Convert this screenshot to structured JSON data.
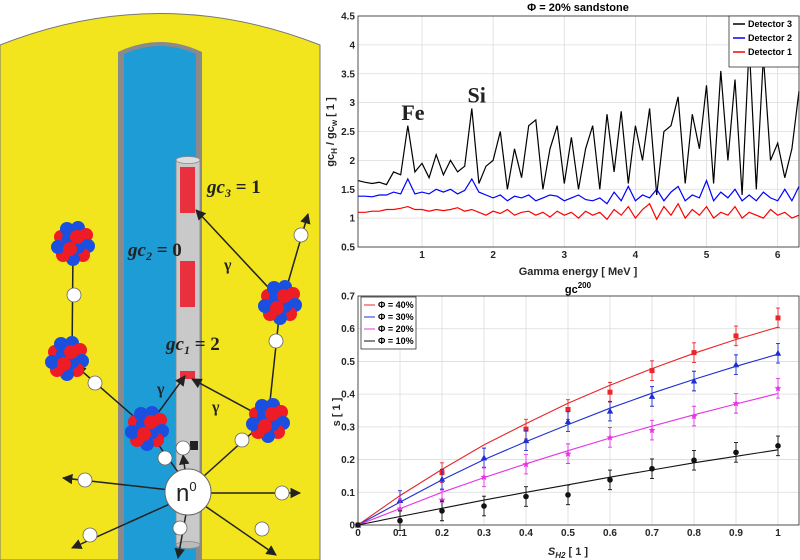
{
  "diagram": {
    "colors": {
      "formation": "#f2e51e",
      "borehole_fluid": "#1e9cd6",
      "casing": "#8a8a8a",
      "tool": "#c9c9c9",
      "detector": "#e8303f",
      "proton": "#ee1c24",
      "neutron_nucleon": "#1a4fe0"
    },
    "detectors": [
      {
        "base": "gc",
        "sub": "3",
        "value": " = 1"
      },
      {
        "base": "gc",
        "sub": "2",
        "value": " = 0"
      },
      {
        "base": "gc",
        "sub": "1",
        "value": " = 2"
      }
    ],
    "gamma_symbol": "γ",
    "neutron_source": {
      "base": "n",
      "sup": "0"
    }
  },
  "chart_data": [
    {
      "type": "line",
      "title": "Φ = 20% sandstone",
      "xlabel": "Gamma energy [ MeV ]",
      "ylabel": {
        "base1": "gc",
        "sub1": "H",
        "mid": " / gc",
        "sub2": "w",
        "tail": "  [ 1 ]"
      },
      "xlim": [
        0.1,
        6.3
      ],
      "ylim": [
        0.5,
        4.5
      ],
      "xticks": [
        1,
        2,
        3,
        4,
        5,
        6
      ],
      "yticks": [
        0.5,
        1,
        1.5,
        2,
        2.5,
        3,
        3.5,
        4,
        4.5
      ],
      "grid": true,
      "legend_position": "top-right",
      "annotations": [
        {
          "text": "Fe",
          "x": 0.85,
          "y": 2.7
        },
        {
          "text": "Si",
          "x": 1.78,
          "y": 3.0
        }
      ],
      "x_start": 0.1,
      "x_step": 0.1,
      "series": [
        {
          "name": "Detector 3",
          "color": "#000000",
          "values": [
            1.65,
            1.62,
            1.6,
            1.62,
            1.58,
            1.8,
            1.75,
            2.6,
            1.8,
            1.95,
            1.7,
            2.1,
            1.75,
            2.0,
            1.8,
            1.9,
            2.9,
            1.6,
            1.9,
            2.0,
            2.5,
            1.5,
            2.2,
            1.7,
            2.6,
            2.7,
            1.5,
            2.2,
            2.6,
            1.6,
            2.4,
            1.5,
            2.2,
            2.6,
            1.5,
            2.8,
            1.8,
            2.85,
            1.6,
            2.6,
            2.0,
            2.9,
            1.4,
            2.5,
            2.6,
            3.1,
            1.6,
            2.8,
            2.2,
            3.3,
            1.6,
            3.55,
            2.0,
            3.4,
            1.4,
            4.0,
            1.5,
            3.8,
            2.0,
            2.3,
            1.7,
            2.2,
            3.2
          ]
        },
        {
          "name": "Detector 2",
          "color": "#0000ff",
          "values": [
            1.38,
            1.38,
            1.37,
            1.4,
            1.4,
            1.45,
            1.42,
            1.68,
            1.42,
            1.45,
            1.42,
            1.5,
            1.45,
            1.5,
            1.42,
            1.48,
            1.68,
            1.45,
            1.4,
            1.35,
            1.4,
            1.3,
            1.38,
            1.35,
            1.4,
            1.3,
            1.35,
            1.4,
            1.38,
            1.3,
            1.35,
            1.4,
            1.32,
            1.3,
            1.35,
            1.25,
            1.45,
            1.3,
            1.55,
            1.3,
            1.4,
            1.35,
            1.5,
            1.3,
            1.45,
            1.55,
            1.3,
            1.4,
            1.35,
            1.65,
            1.3,
            1.45,
            1.35,
            1.5,
            1.3,
            1.4,
            1.3,
            1.45,
            1.35,
            1.3,
            1.5,
            1.3,
            1.55
          ]
        },
        {
          "name": "Detector 1",
          "color": "#ff0000",
          "values": [
            1.1,
            1.1,
            1.12,
            1.12,
            1.15,
            1.15,
            1.17,
            1.2,
            1.15,
            1.15,
            1.12,
            1.15,
            1.13,
            1.15,
            1.18,
            1.12,
            1.15,
            1.1,
            1.05,
            1.12,
            1.08,
            1.15,
            1.05,
            1.1,
            1.12,
            1.05,
            1.1,
            1.02,
            1.12,
            1.05,
            1.1,
            1.0,
            1.12,
            1.05,
            1.1,
            0.98,
            1.15,
            1.05,
            1.2,
            1.0,
            1.15,
            1.25,
            0.98,
            1.2,
            1.05,
            1.25,
            1.0,
            1.15,
            1.05,
            1.2,
            1.0,
            1.1,
            1.05,
            1.2,
            1.0,
            1.1,
            1.05,
            1.0,
            1.15,
            1.05,
            1.1,
            1.0,
            1.05
          ]
        }
      ]
    },
    {
      "type": "scatter",
      "title": {
        "base": "gc",
        "sup": "200"
      },
      "xlabel": {
        "base": "S",
        "sub": "H2",
        "tail": " [ 1 ]"
      },
      "ylabel": "s [ 1 ]",
      "xlim": [
        0,
        1.05
      ],
      "ylim": [
        0,
        0.7
      ],
      "xticks": [
        0,
        0.1,
        0.2,
        0.3,
        0.4,
        0.5,
        0.6,
        0.7,
        0.8,
        0.9,
        1
      ],
      "yticks": [
        0,
        0.1,
        0.2,
        0.3,
        0.4,
        0.5,
        0.6,
        0.7
      ],
      "grid": true,
      "legend_position": "top-left",
      "x": [
        0,
        0.1,
        0.2,
        0.3,
        0.4,
        0.5,
        0.6,
        0.7,
        0.8,
        0.9,
        1
      ],
      "error": 0.03,
      "series": [
        {
          "name": "Φ = 40%",
          "color": "#e8262b",
          "marker": "square",
          "points": [
            0,
            null,
            0.16,
            null,
            0.293,
            0.353,
            0.406,
            0.472,
            0.527,
            0.578,
            0.633
          ],
          "fit": [
            0,
            0.09,
            0.17,
            0.245,
            0.31,
            0.372,
            0.427,
            0.478,
            0.525,
            0.567,
            0.605
          ]
        },
        {
          "name": "Φ = 30%",
          "color": "#1f2fd0",
          "marker": "triangle",
          "points": [
            0,
            0.075,
            0.14,
            0.205,
            0.258,
            0.316,
            0.348,
            0.393,
            0.44,
            0.49,
            0.525
          ],
          "fit": [
            0,
            0.07,
            0.138,
            0.2,
            0.255,
            0.307,
            0.357,
            0.403,
            0.445,
            0.485,
            0.522
          ]
        },
        {
          "name": "Φ = 20%",
          "color": "#e534e5",
          "marker": "star",
          "points": [
            0,
            0.05,
            0.077,
            0.147,
            0.186,
            0.218,
            0.268,
            0.29,
            0.333,
            0.372,
            0.418
          ],
          "fit": [
            0,
            0.05,
            0.1,
            0.145,
            0.187,
            0.227,
            0.266,
            0.302,
            0.337,
            0.37,
            0.402
          ]
        },
        {
          "name": "Φ = 10%",
          "color": "#111111",
          "marker": "circle",
          "points": [
            0,
            0.013,
            0.043,
            0.058,
            0.087,
            0.092,
            0.138,
            0.172,
            0.198,
            0.222,
            0.242
          ],
          "fit": [
            0,
            0.026,
            0.051,
            0.076,
            0.1,
            0.123,
            0.146,
            0.168,
            0.19,
            0.21,
            0.23
          ]
        }
      ]
    }
  ]
}
